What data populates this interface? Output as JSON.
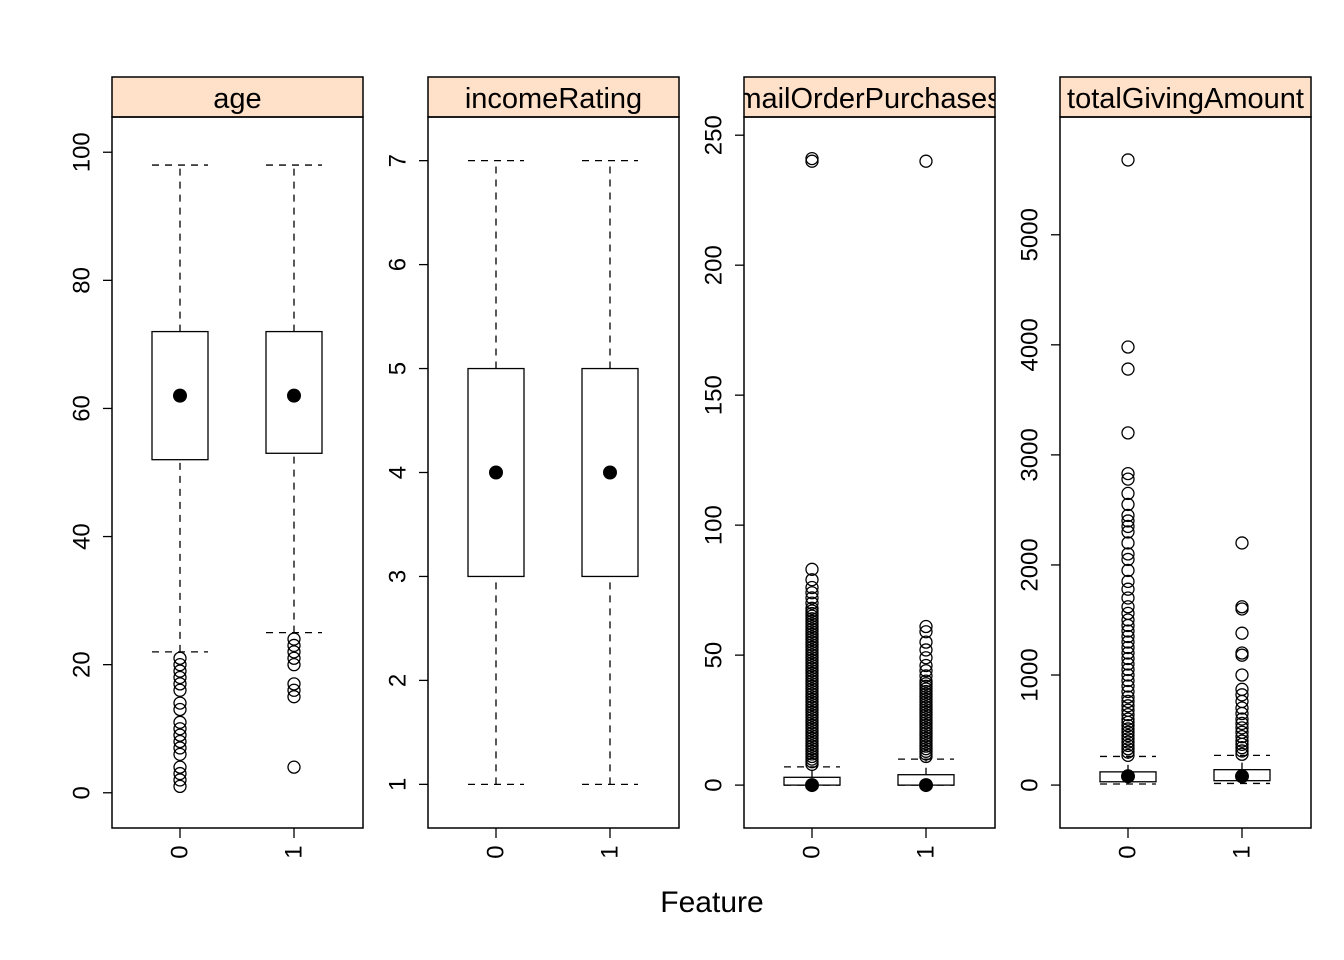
{
  "chart_data": {
    "type": "box",
    "xlabel": "Feature",
    "strip_color": "#FFE0C8",
    "panels": [
      {
        "title": "age",
        "ylim": [
          -5.5,
          105.5
        ],
        "yticks": [
          0,
          20,
          40,
          60,
          80,
          100
        ],
        "categories": [
          "0",
          "1"
        ],
        "boxes": [
          {
            "whisker_low": 22,
            "q1": 52,
            "median": 62,
            "q3": 72,
            "whisker_high": 98,
            "outliers": [
              1,
              2,
              3,
              4,
              6,
              7,
              8,
              9,
              10,
              11,
              13,
              14,
              16,
              17,
              18,
              19,
              20,
              21
            ]
          },
          {
            "whisker_low": 25,
            "q1": 53,
            "median": 62,
            "q3": 72,
            "whisker_high": 98,
            "outliers": [
              4,
              15,
              16,
              17,
              20,
              21,
              22,
              23,
              24
            ]
          }
        ]
      },
      {
        "title": "incomeRating",
        "ylim": [
          0.58,
          7.42
        ],
        "yticks": [
          1,
          2,
          3,
          4,
          5,
          6,
          7
        ],
        "categories": [
          "0",
          "1"
        ],
        "boxes": [
          {
            "whisker_low": 1,
            "q1": 3,
            "median": 4,
            "q3": 5,
            "whisker_high": 7,
            "outliers": []
          },
          {
            "whisker_low": 1,
            "q1": 3,
            "median": 4,
            "q3": 5,
            "whisker_high": 7,
            "outliers": []
          }
        ]
      },
      {
        "title": "mailOrderPurchases",
        "ylim": [
          -16.5,
          257
        ],
        "yticks": [
          0,
          50,
          100,
          150,
          200,
          250
        ],
        "categories": [
          "0",
          "1"
        ],
        "boxes": [
          {
            "whisker_low": 0,
            "q1": 0,
            "median": 0,
            "q3": 3,
            "whisker_high": 7,
            "outliers": [
              8,
              9,
              10,
              11,
              12,
              13,
              14,
              15,
              16,
              17,
              18,
              19,
              20,
              21,
              22,
              23,
              24,
              25,
              26,
              27,
              28,
              29,
              30,
              31,
              32,
              33,
              34,
              35,
              36,
              37,
              38,
              39,
              40,
              41,
              42,
              43,
              44,
              45,
              46,
              47,
              48,
              49,
              50,
              51,
              52,
              53,
              54,
              55,
              56,
              57,
              58,
              59,
              60,
              61,
              62,
              63,
              64,
              65,
              66,
              67,
              68,
              70,
              72,
              74,
              76,
              79,
              83,
              240,
              241
            ]
          },
          {
            "whisker_low": 0,
            "q1": 0,
            "median": 0,
            "q3": 4,
            "whisker_high": 10,
            "outliers": [
              11,
              12,
              13,
              14,
              15,
              16,
              17,
              18,
              19,
              20,
              21,
              22,
              23,
              24,
              25,
              26,
              27,
              28,
              29,
              30,
              31,
              32,
              33,
              34,
              35,
              36,
              37,
              38,
              39,
              40,
              42,
              44,
              46,
              49,
              52,
              55,
              59,
              61,
              240
            ]
          }
        ]
      },
      {
        "title": "totalGivingAmount",
        "ylim": [
          -390,
          6070
        ],
        "yticks": [
          0,
          1000,
          2000,
          3000,
          4000,
          5000
        ],
        "categories": [
          "0",
          "1"
        ],
        "boxes": [
          {
            "whisker_low": 10,
            "q1": 30,
            "median": 80,
            "q3": 120,
            "whisker_high": 260,
            "outliers": [
              270,
              300,
              330,
              360,
              390,
              420,
              450,
              480,
              510,
              540,
              570,
              600,
              640,
              680,
              720,
              760,
              800,
              850,
              900,
              950,
              1000,
              1050,
              1100,
              1150,
              1200,
              1250,
              1300,
              1350,
              1400,
              1450,
              1500,
              1560,
              1620,
              1700,
              1780,
              1850,
              1950,
              2050,
              2100,
              2200,
              2300,
              2350,
              2400,
              2450,
              2550,
              2650,
              2780,
              2830,
              3200,
              3780,
              3980,
              5680
            ]
          },
          {
            "whisker_low": 15,
            "q1": 40,
            "median": 80,
            "q3": 140,
            "whisker_high": 270,
            "outliers": [
              280,
              310,
              340,
              370,
              400,
              440,
              480,
              520,
              560,
              600,
              650,
              700,
              760,
              820,
              870,
              1000,
              1180,
              1200,
              1380,
              1600,
              1620,
              2200
            ]
          }
        ]
      }
    ]
  }
}
